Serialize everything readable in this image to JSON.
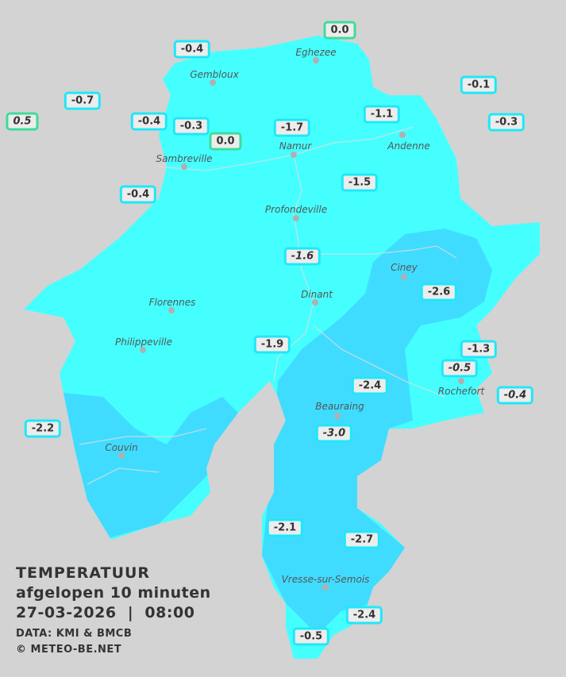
{
  "legend": {
    "title": "TEMPERATUUR",
    "subtitle": "afgelopen 10 minuten",
    "datetime": "27-03-2026  |  08:00",
    "source": "DATA: KMI & BMCB",
    "copyright": "© METEO-BE.NET"
  },
  "colors": {
    "background": "#d3d3d3",
    "zone_light": "#45ffff",
    "zone_dark": "#40dcff",
    "label_border": "#1ee8f8",
    "label_border_zero": "#3ddc9a"
  },
  "cities": [
    "Eghezee",
    "Gembloux",
    "Andenne",
    "Namur",
    "Sambreville",
    "Profondeville",
    "Ciney",
    "Dinant",
    "Florennes",
    "Philippeville",
    "Rochefort",
    "Beauraing",
    "Couvin",
    "Vresse-sur-Semois"
  ],
  "readings": [
    "0.0",
    "-0.4",
    "-0.1",
    "-0.7",
    "0.5",
    "-0.4",
    "-0.3",
    "-1.7",
    "-1.1",
    "-0.3",
    "0.0",
    "-0.4",
    "-1.5",
    "-1.6",
    "-2.6",
    "-1.3",
    "-0.5",
    "-1.9",
    "-2.4",
    "-0.4",
    "-3.0",
    "-2.2",
    "-2.1",
    "-2.7",
    "-2.4",
    "-0.5"
  ]
}
